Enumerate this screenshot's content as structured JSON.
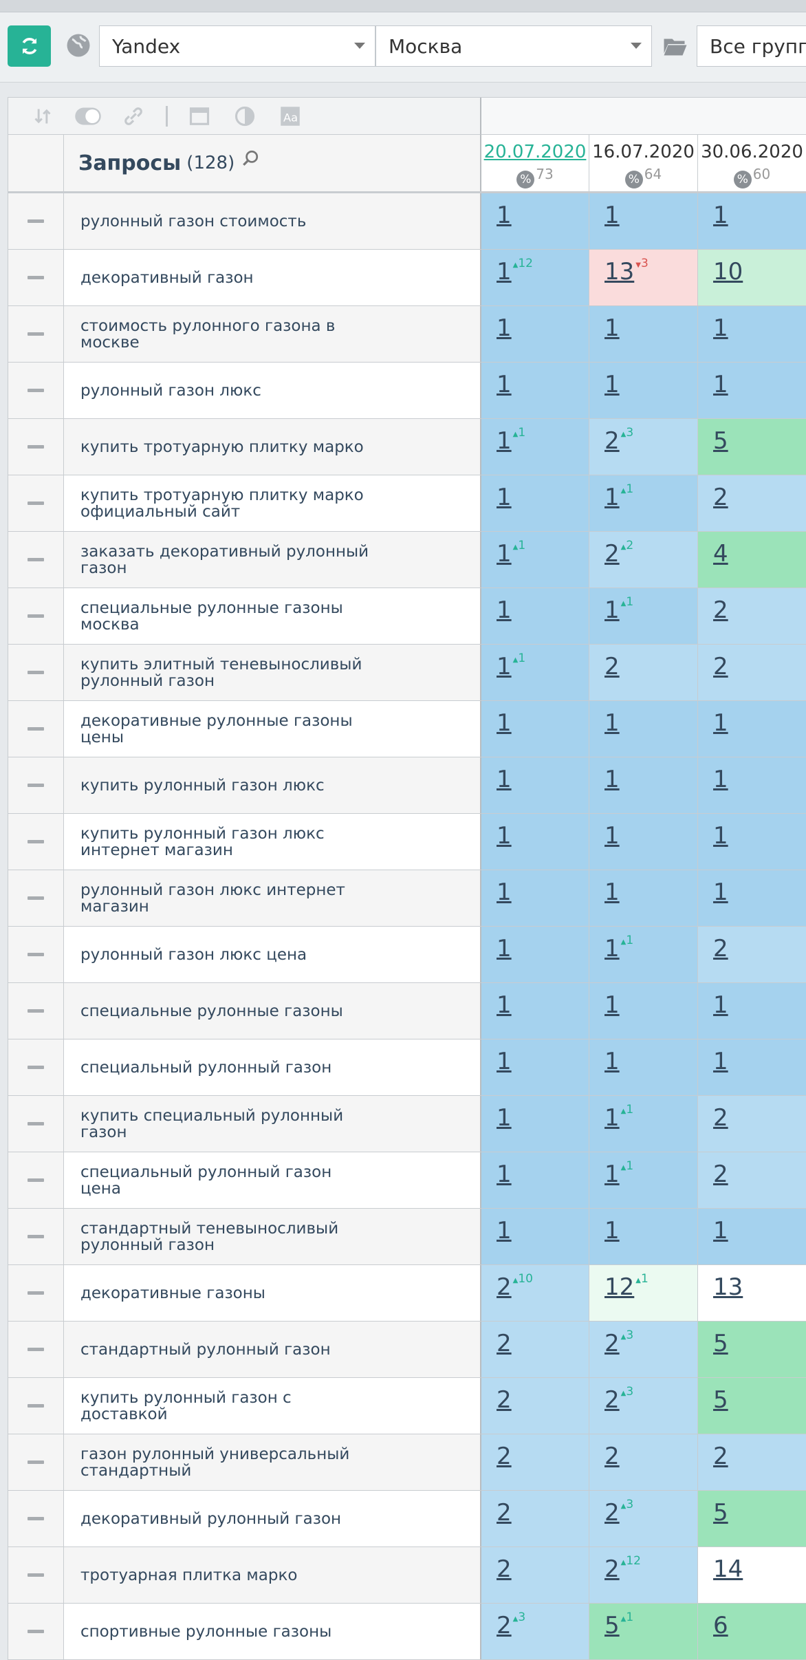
{
  "toolbar": {
    "engine": "Yandex",
    "region": "Москва",
    "groups": "Все группы"
  },
  "table": {
    "header_title": "Запросы",
    "header_count": "(128)",
    "dates": [
      {
        "label": "20.07.2020",
        "pct": "73",
        "active": true
      },
      {
        "label": "16.07.2020",
        "pct": "64",
        "active": false
      },
      {
        "label": "30.06.2020",
        "pct": "60",
        "active": false
      }
    ],
    "rows": [
      {
        "q": "рулонный газон стоимость",
        "cells": [
          {
            "v": "1",
            "c": "c-top1"
          },
          {
            "v": "1",
            "c": "c-top1"
          },
          {
            "v": "1",
            "c": "c-top1"
          }
        ]
      },
      {
        "q": "декоративный газон",
        "cells": [
          {
            "v": "1",
            "d": "12",
            "dir": "up",
            "c": "c-top1"
          },
          {
            "v": "13",
            "d": "3",
            "dir": "down",
            "c": "c-red"
          },
          {
            "v": "10",
            "c": "c-top10l"
          }
        ]
      },
      {
        "q": "стоимость рулонного газона в москве",
        "cells": [
          {
            "v": "1",
            "c": "c-top1"
          },
          {
            "v": "1",
            "c": "c-top1"
          },
          {
            "v": "1",
            "c": "c-top1"
          }
        ]
      },
      {
        "q": "рулонный газон люкс",
        "cells": [
          {
            "v": "1",
            "c": "c-top1"
          },
          {
            "v": "1",
            "c": "c-top1"
          },
          {
            "v": "1",
            "c": "c-top1"
          }
        ]
      },
      {
        "q": "купить тротуарную плитку марко",
        "cells": [
          {
            "v": "1",
            "d": "1",
            "dir": "up",
            "c": "c-top1"
          },
          {
            "v": "2",
            "d": "3",
            "dir": "up",
            "c": "c-top3"
          },
          {
            "v": "5",
            "c": "c-top10"
          }
        ]
      },
      {
        "q": "купить тротуарную плитку марко официальный сайт",
        "cells": [
          {
            "v": "1",
            "c": "c-top1"
          },
          {
            "v": "1",
            "d": "1",
            "dir": "up",
            "c": "c-top1"
          },
          {
            "v": "2",
            "c": "c-top3"
          }
        ]
      },
      {
        "q": "заказать декоративный рулонный газон",
        "cells": [
          {
            "v": "1",
            "d": "1",
            "dir": "up",
            "c": "c-top1"
          },
          {
            "v": "2",
            "d": "2",
            "dir": "up",
            "c": "c-top3"
          },
          {
            "v": "4",
            "c": "c-top10"
          }
        ]
      },
      {
        "q": "специальные рулонные газоны москва",
        "cells": [
          {
            "v": "1",
            "c": "c-top1"
          },
          {
            "v": "1",
            "d": "1",
            "dir": "up",
            "c": "c-top1"
          },
          {
            "v": "2",
            "c": "c-top3"
          }
        ]
      },
      {
        "q": "купить элитный теневыносливый рулонный газон",
        "cells": [
          {
            "v": "1",
            "d": "1",
            "dir": "up",
            "c": "c-top1"
          },
          {
            "v": "2",
            "c": "c-top3"
          },
          {
            "v": "2",
            "c": "c-top3"
          }
        ]
      },
      {
        "q": "декоративные рулонные газоны цены",
        "cells": [
          {
            "v": "1",
            "c": "c-top1"
          },
          {
            "v": "1",
            "c": "c-top1"
          },
          {
            "v": "1",
            "c": "c-top1"
          }
        ]
      },
      {
        "q": "купить рулонный газон люкс",
        "cells": [
          {
            "v": "1",
            "c": "c-top1"
          },
          {
            "v": "1",
            "c": "c-top1"
          },
          {
            "v": "1",
            "c": "c-top1"
          }
        ]
      },
      {
        "q": "купить рулонный газон люкс интернет магазин",
        "cells": [
          {
            "v": "1",
            "c": "c-top1"
          },
          {
            "v": "1",
            "c": "c-top1"
          },
          {
            "v": "1",
            "c": "c-top1"
          }
        ]
      },
      {
        "q": "рулонный газон люкс интернет магазин",
        "cells": [
          {
            "v": "1",
            "c": "c-top1"
          },
          {
            "v": "1",
            "c": "c-top1"
          },
          {
            "v": "1",
            "c": "c-top1"
          }
        ]
      },
      {
        "q": "рулонный газон люкс цена",
        "cells": [
          {
            "v": "1",
            "c": "c-top1"
          },
          {
            "v": "1",
            "d": "1",
            "dir": "up",
            "c": "c-top1"
          },
          {
            "v": "2",
            "c": "c-top3"
          }
        ]
      },
      {
        "q": "специальные рулонные газоны",
        "cells": [
          {
            "v": "1",
            "c": "c-top1"
          },
          {
            "v": "1",
            "c": "c-top1"
          },
          {
            "v": "1",
            "c": "c-top1"
          }
        ]
      },
      {
        "q": "специальный рулонный газон",
        "cells": [
          {
            "v": "1",
            "c": "c-top1"
          },
          {
            "v": "1",
            "c": "c-top1"
          },
          {
            "v": "1",
            "c": "c-top1"
          }
        ]
      },
      {
        "q": "купить специальный рулонный газон",
        "cells": [
          {
            "v": "1",
            "c": "c-top1"
          },
          {
            "v": "1",
            "d": "1",
            "dir": "up",
            "c": "c-top1"
          },
          {
            "v": "2",
            "c": "c-top3"
          }
        ]
      },
      {
        "q": "специальный рулонный газон цена",
        "cells": [
          {
            "v": "1",
            "c": "c-top1"
          },
          {
            "v": "1",
            "d": "1",
            "dir": "up",
            "c": "c-top1"
          },
          {
            "v": "2",
            "c": "c-top3"
          }
        ]
      },
      {
        "q": "стандартный теневыносливый рулонный газон",
        "cells": [
          {
            "v": "1",
            "c": "c-top1"
          },
          {
            "v": "1",
            "c": "c-top1"
          },
          {
            "v": "1",
            "c": "c-top1"
          }
        ]
      },
      {
        "q": "декоративные газоны",
        "cells": [
          {
            "v": "2",
            "d": "10",
            "dir": "up",
            "c": "c-top3"
          },
          {
            "v": "12",
            "d": "1",
            "dir": "up",
            "c": "c-lgreen"
          },
          {
            "v": "13",
            "c": "c-white"
          }
        ]
      },
      {
        "q": "стандартный рулонный газон",
        "cells": [
          {
            "v": "2",
            "c": "c-top3"
          },
          {
            "v": "2",
            "d": "3",
            "dir": "up",
            "c": "c-top3"
          },
          {
            "v": "5",
            "c": "c-top10"
          }
        ]
      },
      {
        "q": "купить рулонный газон с доставкой",
        "cells": [
          {
            "v": "2",
            "c": "c-top3"
          },
          {
            "v": "2",
            "d": "3",
            "dir": "up",
            "c": "c-top3"
          },
          {
            "v": "5",
            "c": "c-top10"
          }
        ]
      },
      {
        "q": "газон рулонный универсальный стандартный",
        "cells": [
          {
            "v": "2",
            "c": "c-top3"
          },
          {
            "v": "2",
            "c": "c-top3"
          },
          {
            "v": "2",
            "c": "c-top3"
          }
        ]
      },
      {
        "q": "декоративный рулонный газон",
        "cells": [
          {
            "v": "2",
            "c": "c-top3"
          },
          {
            "v": "2",
            "d": "3",
            "dir": "up",
            "c": "c-top3"
          },
          {
            "v": "5",
            "c": "c-top10"
          }
        ]
      },
      {
        "q": "тротуарная плитка марко",
        "cells": [
          {
            "v": "2",
            "c": "c-top3"
          },
          {
            "v": "2",
            "d": "12",
            "dir": "up",
            "c": "c-top3"
          },
          {
            "v": "14",
            "c": "c-white"
          }
        ]
      },
      {
        "q": "спортивные рулонные газоны",
        "cells": [
          {
            "v": "2",
            "d": "3",
            "dir": "up",
            "c": "c-top3"
          },
          {
            "v": "5",
            "d": "1",
            "dir": "up",
            "c": "c-top10"
          },
          {
            "v": "6",
            "c": "c-top10"
          }
        ]
      }
    ]
  }
}
